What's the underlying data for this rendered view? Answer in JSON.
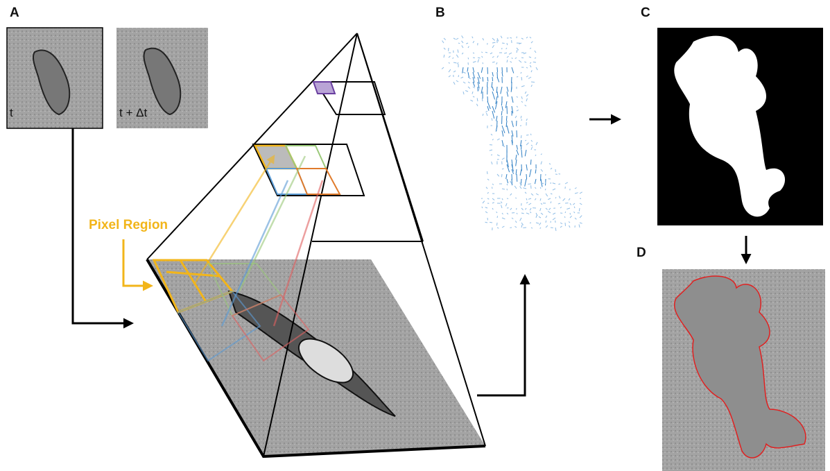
{
  "panels": [
    {
      "label": "A",
      "frames": [
        "t",
        "t + Δt"
      ],
      "annotation": "Pixel Region"
    },
    {
      "label": "B"
    },
    {
      "label": "C"
    },
    {
      "label": "D"
    }
  ]
}
